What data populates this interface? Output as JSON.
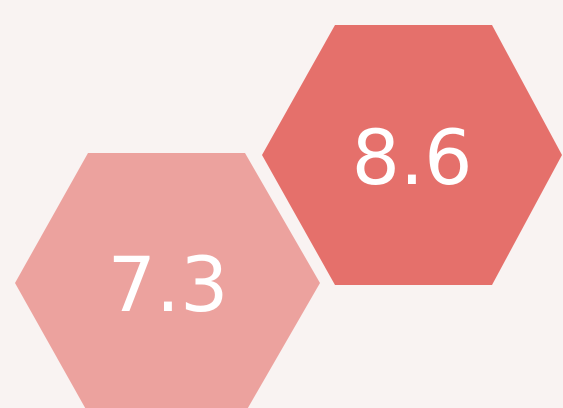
{
  "tiles": [
    {
      "label": "7.3",
      "color": "#eca29e"
    },
    {
      "label": "8.6",
      "color": "#e5706b"
    }
  ]
}
